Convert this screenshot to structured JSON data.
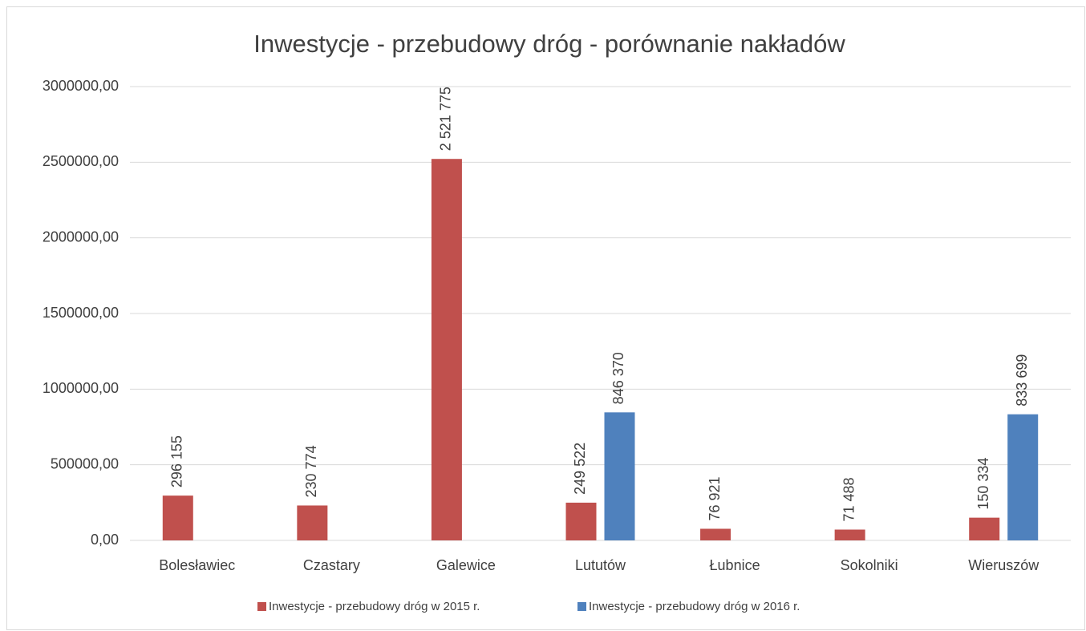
{
  "chart_data": {
    "type": "bar",
    "title": "Inwestycje - przebudowy dróg - porównanie nakładów",
    "categories": [
      "Bolesławiec",
      "Czastary",
      "Galewice",
      "Lututów",
      "Łubnice",
      "Sokolniki",
      "Wieruszów"
    ],
    "series": [
      {
        "name": "Inwestycje - przebudowy dróg w 2015 r.",
        "color": "#c0504d",
        "values": [
          296155,
          230774,
          2521775,
          249522,
          76921,
          71488,
          150334
        ],
        "value_labels": [
          "296 155",
          "230 774",
          "2 521 775",
          "249 522",
          "76 921",
          "71 488",
          "150 334"
        ]
      },
      {
        "name": "Inwestycje - przebudowy dróg w 2016 r.",
        "color": "#4f81bd",
        "values": [
          null,
          null,
          null,
          846370,
          null,
          null,
          833699
        ],
        "value_labels": [
          null,
          null,
          null,
          "846 370",
          null,
          null,
          "833 699"
        ]
      }
    ],
    "ylim": [
      0,
      3000000
    ],
    "yticks": [
      {
        "value": 0,
        "label": "0,00"
      },
      {
        "value": 500000,
        "label": "500000,00"
      },
      {
        "value": 1000000,
        "label": "1000000,00"
      },
      {
        "value": 1500000,
        "label": "1500000,00"
      },
      {
        "value": 2000000,
        "label": "2000000,00"
      },
      {
        "value": 2500000,
        "label": "2500000,00"
      },
      {
        "value": 3000000,
        "label": "3000000,00"
      }
    ],
    "grid": true,
    "legend": "bottom"
  }
}
